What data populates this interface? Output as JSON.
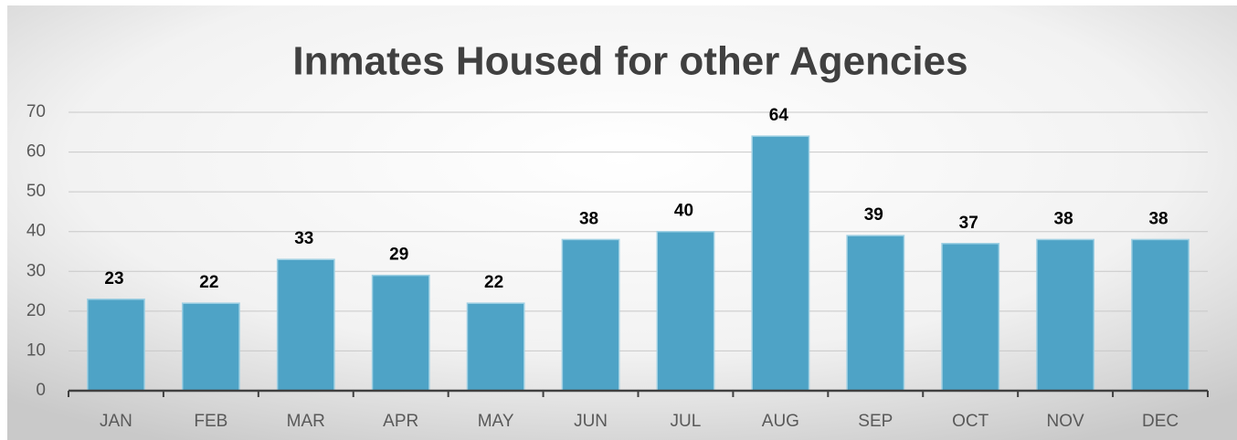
{
  "chart_data": {
    "type": "bar",
    "title": "Inmates Housed  for other Agencies",
    "categories": [
      "JAN",
      "FEB",
      "MAR",
      "APR",
      "MAY",
      "JUN",
      "JUL",
      "AUG",
      "SEP",
      "OCT",
      "NOV",
      "DEC"
    ],
    "values": [
      23,
      22,
      33,
      29,
      22,
      38,
      40,
      64,
      39,
      37,
      38,
      38
    ],
    "color": "#4ea3c6",
    "ylim": [
      0,
      70
    ],
    "yticks": [
      0,
      10,
      20,
      30,
      40,
      50,
      60,
      70
    ],
    "grid": true
  }
}
